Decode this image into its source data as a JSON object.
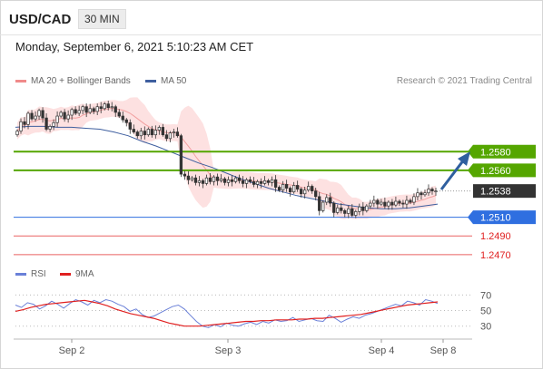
{
  "header": {
    "symbol": "USD/CAD",
    "timeframe": "30 MIN"
  },
  "datetime": "Monday, September 6, 2021 5:10:23 AM CET",
  "legend_main": [
    {
      "label": "MA 20 + Bollinger Bands",
      "color": "#f08a8a"
    },
    {
      "label": "MA 50",
      "color": "#3f5f9f"
    }
  ],
  "copyright": "Research © 2021 Trading Central",
  "legend_rsi": [
    {
      "label": "RSI",
      "color": "#6a80d8"
    },
    {
      "label": "9MA",
      "color": "#e02020"
    }
  ],
  "chart_data": {
    "type": "candlestick",
    "x_ticks": [
      "Sep 2",
      "Sep 3",
      "Sep 4",
      "Sep 8"
    ],
    "price_levels": [
      {
        "label": "1.2580",
        "value": 1.258,
        "kind": "resistance",
        "color": "#55a600"
      },
      {
        "label": "1.2560",
        "value": 1.256,
        "kind": "resistance",
        "color": "#55a600"
      },
      {
        "label": "1.2538",
        "value": 1.2538,
        "kind": "last",
        "color": "#333333"
      },
      {
        "label": "1.2510",
        "value": 1.251,
        "kind": "pivot",
        "color": "#2f6fe0"
      },
      {
        "label": "1.2490",
        "value": 1.249,
        "kind": "support",
        "color": "#e02020"
      },
      {
        "label": "1.2470",
        "value": 1.247,
        "kind": "support",
        "color": "#e02020"
      }
    ],
    "price_range": [
      1.2466,
      1.265
    ],
    "close": [
      1.2602,
      1.2612,
      1.2609,
      1.2621,
      1.2615,
      1.2618,
      1.2624,
      1.2616,
      1.2604,
      1.2607,
      1.2611,
      1.2618,
      1.2622,
      1.2615,
      1.2619,
      1.2625,
      1.2621,
      1.2624,
      1.2628,
      1.2622,
      1.2626,
      1.2623,
      1.2628,
      1.2626,
      1.2631,
      1.2627,
      1.2628,
      1.2622,
      1.2618,
      1.2614,
      1.2611,
      1.2604,
      1.2601,
      1.2597,
      1.2602,
      1.2598,
      1.2604,
      1.2598,
      1.2603,
      1.2606,
      1.2598,
      1.2594,
      1.26,
      1.2601,
      1.2597,
      1.2556,
      1.2554,
      1.255,
      1.2552,
      1.2547,
      1.2549,
      1.2546,
      1.2552,
      1.2548,
      1.2553,
      1.2549,
      1.2551,
      1.2547,
      1.255,
      1.2548,
      1.2552,
      1.2549,
      1.2546,
      1.255,
      1.2548,
      1.2545,
      1.2548,
      1.2546,
      1.2549,
      1.2547,
      1.255,
      1.2542,
      1.2539,
      1.2545,
      1.2541,
      1.2537,
      1.2544,
      1.254,
      1.2535,
      1.2539,
      1.2543,
      1.2538,
      1.2532,
      1.2517,
      1.2526,
      1.2531,
      1.2525,
      1.2515,
      1.252,
      1.2517,
      1.2514,
      1.2519,
      1.2512,
      1.2516,
      1.2521,
      1.2517,
      1.2522,
      1.2525,
      1.2528,
      1.2524,
      1.2526,
      1.2522,
      1.2526,
      1.2523,
      1.2527,
      1.2525,
      1.2524,
      1.2528,
      1.2526,
      1.2532,
      1.2536,
      1.2534,
      1.2536,
      1.254,
      1.2538,
      1.2538
    ],
    "ma50": [
      1.2606,
      1.2607,
      1.2607,
      1.2606,
      1.2606,
      1.2605,
      1.2604,
      1.2601,
      1.2597,
      1.2591,
      1.2586,
      1.258,
      1.2574,
      1.2568,
      1.2563,
      1.2557,
      1.2551,
      1.2546,
      1.2541,
      1.2537,
      1.2533,
      1.253,
      1.2527,
      1.2524,
      1.2522,
      1.252,
      1.2519,
      1.2519,
      1.252,
      1.2522,
      1.2524
    ],
    "rsi": [
      57,
      54,
      60,
      58,
      52,
      56,
      62,
      58,
      53,
      59,
      64,
      61,
      57,
      63,
      60,
      64,
      62,
      58,
      55,
      49,
      52,
      45,
      41,
      43,
      47,
      51,
      55,
      57,
      52,
      44,
      36,
      30,
      28,
      32,
      29,
      34,
      31,
      30,
      33,
      35,
      32,
      36,
      34,
      38,
      36,
      37,
      41,
      36,
      38,
      40,
      37,
      36,
      44,
      40,
      35,
      39,
      42,
      40,
      44,
      46,
      49,
      52,
      55,
      58,
      56,
      62,
      60,
      57,
      64,
      62,
      59
    ],
    "rsi_ma": [
      49,
      51,
      54,
      56,
      58,
      59,
      60,
      61,
      62,
      63,
      61,
      59,
      56,
      52,
      49,
      46,
      44,
      42,
      40,
      37,
      34,
      32,
      30,
      30,
      30,
      31,
      32,
      33,
      34,
      35,
      36,
      36,
      37,
      37,
      38,
      38,
      38,
      39,
      39,
      40,
      40,
      41,
      42,
      43,
      44,
      45,
      47,
      49,
      51,
      53,
      55,
      57,
      58,
      59,
      60,
      61
    ],
    "rsi_levels": [
      70,
      50,
      30
    ],
    "rsi_range": [
      18,
      82
    ]
  }
}
